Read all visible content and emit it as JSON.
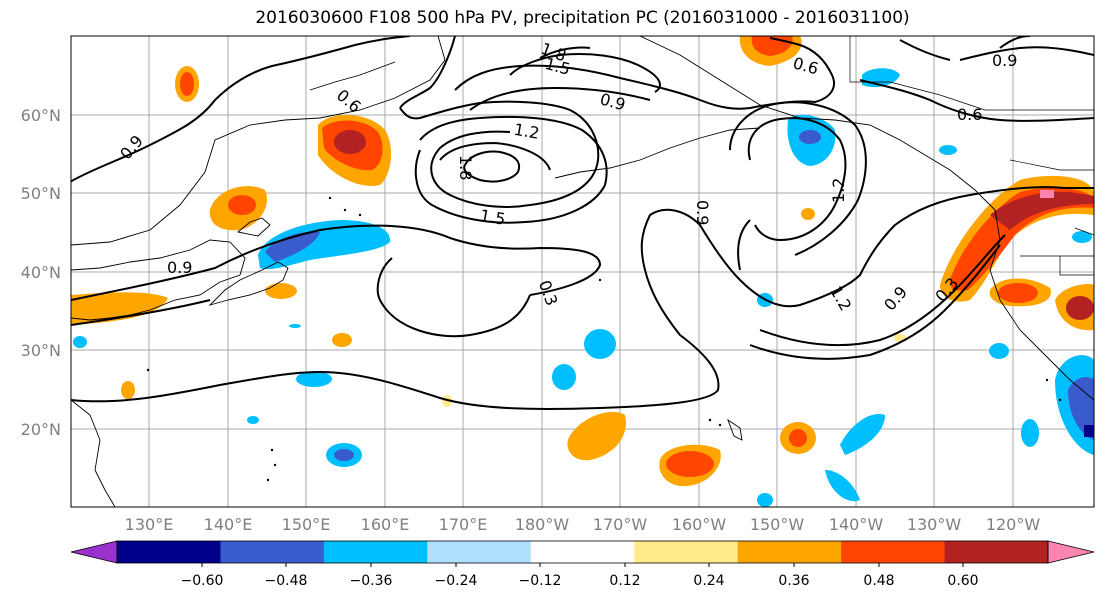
{
  "title": "2016030600 F108 500 hPa PV, precipitation PC (2016031000 - 2016031100)",
  "map": {
    "lat_labels": [
      "60°N",
      "50°N",
      "40°N",
      "30°N",
      "20°N"
    ],
    "lon_labels": [
      "130°E",
      "140°E",
      "150°E",
      "160°E",
      "170°E",
      "180°W",
      "170°W",
      "160°W",
      "150°W",
      "140°W",
      "130°W",
      "120°W"
    ],
    "contour_labels": [
      "0.9",
      "0.6",
      "1.8",
      "1.5",
      "0.9",
      "0.6",
      "1.2",
      "1.8",
      "1.5",
      "0.9",
      "0.3",
      "0.9",
      "1.2",
      "1.2",
      "0.9",
      "0.3",
      "0.6",
      "0.9"
    ]
  },
  "colorbar": {
    "ticks": [
      "−0.60",
      "−0.48",
      "−0.36",
      "−0.24",
      "−0.12",
      "0.12",
      "0.24",
      "0.36",
      "0.48",
      "0.60"
    ],
    "colors": [
      "#9932CC",
      "#00008B",
      "#3A5BCB",
      "#00BFFF",
      "#B0E2FF",
      "#FFFFFF",
      "#FFEB8A",
      "#FFA500",
      "#FF4500",
      "#B22222",
      "#FF85B0"
    ]
  }
}
